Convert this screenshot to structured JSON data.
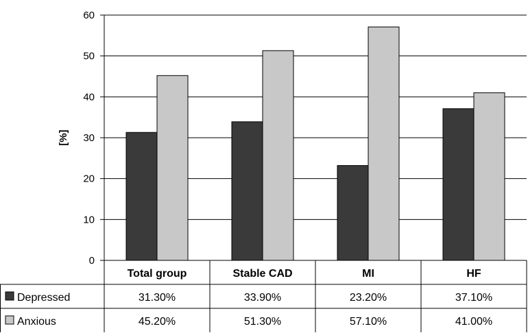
{
  "chart_data": {
    "type": "bar",
    "ylabel": "[%]",
    "xlabel": "",
    "ylim": [
      0,
      60
    ],
    "yticks": [
      0,
      10,
      20,
      30,
      40,
      50,
      60
    ],
    "grid": true,
    "legend": "data-table-left",
    "categories": [
      "Total group",
      "Stable CAD",
      "MI",
      "HF"
    ],
    "series": [
      {
        "name": "Depressed",
        "color": "#3a3a3a",
        "values": [
          31.3,
          33.9,
          23.2,
          37.1
        ],
        "labels": [
          "31.30%",
          "33.90%",
          "23.20%",
          "37.10%"
        ]
      },
      {
        "name": "Anxious",
        "color": "#c8c8c8",
        "values": [
          45.2,
          51.3,
          57.1,
          41.0
        ],
        "labels": [
          "45.20%",
          "51.30%",
          "57.10%",
          "41.00%"
        ]
      }
    ]
  }
}
